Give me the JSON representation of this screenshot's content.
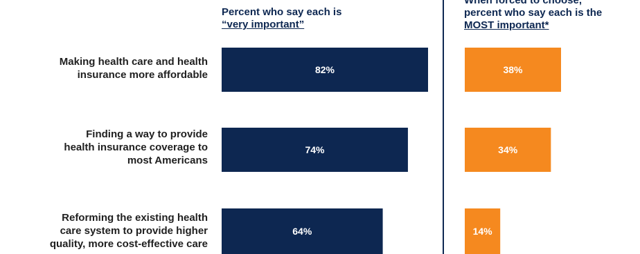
{
  "chart_data": [
    {
      "type": "bar",
      "orientation": "horizontal",
      "title_line1": "Percent who say each is",
      "title_line2": "“very important”",
      "categories": [
        "Making health care and health insurance more affordable",
        "Finding a way to provide health insurance coverage to most Americans",
        "Reforming the existing health care system to provide higher quality, more cost-effective care"
      ],
      "values": [
        82,
        74,
        64
      ],
      "value_labels": [
        "82%",
        "74%",
        "64%"
      ],
      "color": "#0d2751",
      "xlim": [
        0,
        100
      ]
    },
    {
      "type": "bar",
      "orientation": "horizontal",
      "title_line1": "When forced to choose,",
      "title_line2": "percent who say each is the",
      "title_line3": "MOST important*",
      "categories": [
        "Making health care and health insurance more affordable",
        "Finding a way to provide health insurance coverage to most Americans",
        "Reforming the existing health care system to provide higher quality, more cost-effective care"
      ],
      "values": [
        38,
        34,
        14
      ],
      "value_labels": [
        "38%",
        "34%",
        "14%"
      ],
      "color": "#f5891f",
      "xlim": [
        0,
        100
      ]
    }
  ],
  "category_lines": [
    [
      "Making health care and health",
      "insurance more affordable"
    ],
    [
      "Finding a way to provide",
      "health insurance coverage to",
      "most Americans"
    ],
    [
      "Reforming the existing health",
      "care system to provide higher",
      "quality, more cost-effective care"
    ]
  ]
}
